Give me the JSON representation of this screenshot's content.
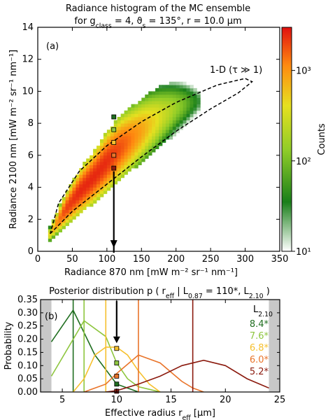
{
  "figure": {
    "title_line1": "Radiance histogram of the MC ensemble",
    "title_line2": "for g_class = 4, ϑ_s = 135°, r = 10.0 µm"
  },
  "chart_data": [
    {
      "type": "heatmap",
      "panel_label": "(a)",
      "xlabel": "Radiance 870 nm [mW m⁻² sr⁻¹ nm⁻¹]",
      "ylabel": "Radiance 2100 nm [mW m⁻² sr⁻¹ nm⁻¹]",
      "xlim": [
        0,
        350
      ],
      "ylim": [
        0,
        14
      ],
      "xticks": [
        0,
        50,
        100,
        150,
        200,
        250,
        300,
        350
      ],
      "yticks": [
        0,
        2,
        4,
        6,
        8,
        10,
        12,
        14
      ],
      "grid": false,
      "bin_size": {
        "x": 5,
        "y": 0.2
      },
      "density_ridge": {
        "x": [
          15,
          25,
          40,
          60,
          80,
          100,
          120,
          140,
          160,
          180,
          200,
          220,
          235
        ],
        "y": [
          0.9,
          1.6,
          2.6,
          3.7,
          4.6,
          5.6,
          6.5,
          7.2,
          7.9,
          8.5,
          9.0,
          9.3,
          9.4
        ],
        "width": [
          0.3,
          0.5,
          0.8,
          1.1,
          1.3,
          1.5,
          1.6,
          1.6,
          1.6,
          1.5,
          1.3,
          1.1,
          0.8
        ],
        "peak_counts": [
          300,
          900,
          2000,
          2500,
          2500,
          2400,
          1800,
          1100,
          600,
          300,
          150,
          60,
          25
        ]
      },
      "colorbar": {
        "label": "Counts",
        "scale": "log",
        "range": [
          10,
          3000
        ],
        "ticks": [
          {
            "value": 10,
            "label": "10¹"
          },
          {
            "value": 100,
            "label": "10²"
          },
          {
            "value": 1000,
            "label": "10³"
          }
        ],
        "colors": [
          "#ffffff",
          "#1a7f1a",
          "#8fcc28",
          "#e6e020",
          "#ff8a10",
          "#e01010"
        ]
      },
      "one_d_curve": {
        "label": "1-D (τ ≫ 1)",
        "x": [
          18,
          50,
          100,
          150,
          200,
          250,
          290,
          310,
          300,
          260,
          200,
          150,
          100,
          60,
          30,
          18
        ],
        "y": [
          1.1,
          2.5,
          4.2,
          5.9,
          7.5,
          8.9,
          9.9,
          10.6,
          10.8,
          10.4,
          9.3,
          8.1,
          6.6,
          5.0,
          3.0,
          1.1
        ]
      },
      "observation": {
        "x": 110,
        "arrow_from_y": 5.0,
        "arrow_to_y": 0.3,
        "markers": [
          {
            "y": 8.4,
            "color": "#1f6e1f"
          },
          {
            "y": 7.6,
            "color": "#8ec63f"
          },
          {
            "y": 6.8,
            "color": "#f6c02e"
          },
          {
            "y": 6.0,
            "color": "#e9742a"
          },
          {
            "y": 5.2,
            "color": "#8b1a0e"
          }
        ]
      }
    },
    {
      "type": "line",
      "panel_label": "(b)",
      "title": "Posterior distribution p ( r_eff | L_0.87 = 110*, L_2.10 )",
      "xlabel": "Effective radius r_eff [µm]",
      "ylabel": "Probability",
      "xlim": [
        3,
        25
      ],
      "ylim": [
        0,
        0.35
      ],
      "xticks": [
        5,
        10,
        15,
        20,
        25
      ],
      "yticks": [
        0.0,
        0.05,
        0.1,
        0.15,
        0.2,
        0.25,
        0.3,
        0.35
      ],
      "shaded_x_ranges": [
        [
          3,
          4
        ],
        [
          24,
          25
        ]
      ],
      "legend_title": "L_2.10",
      "legend_position": "right",
      "observation_x": 10,
      "series": [
        {
          "name": "8.4*",
          "color": "#1f6e1f",
          "x": [
            4,
            6,
            8,
            10,
            12
          ],
          "y": [
            0.19,
            0.31,
            0.14,
            0.03,
            0.0
          ],
          "vline": 6,
          "marker_y": 0.03
        },
        {
          "name": "7.6*",
          "color": "#8ec63f",
          "x": [
            4,
            5,
            7,
            9,
            10,
            11,
            12,
            13,
            14
          ],
          "y": [
            0.06,
            0.13,
            0.27,
            0.21,
            0.11,
            0.05,
            0.02,
            0.01,
            0.0
          ],
          "vline": 7,
          "marker_y": 0.11
        },
        {
          "name": "6.8*",
          "color": "#f6c02e",
          "x": [
            6,
            7,
            8,
            9,
            10,
            11,
            12,
            13,
            14
          ],
          "y": [
            0.0,
            0.05,
            0.14,
            0.17,
            0.17,
            0.14,
            0.08,
            0.03,
            0.0
          ],
          "vline": 9,
          "marker_y": 0.165
        },
        {
          "name": "6.0*",
          "color": "#e9742a",
          "x": [
            7,
            9,
            10,
            12,
            14,
            16,
            17,
            18
          ],
          "y": [
            0.0,
            0.03,
            0.07,
            0.14,
            0.11,
            0.04,
            0.015,
            0.0
          ],
          "vline": 12,
          "marker_y": 0.06
        },
        {
          "name": "5.2*",
          "color": "#8b1a0e",
          "x": [
            9,
            10,
            12,
            14,
            16,
            18,
            20,
            22,
            24
          ],
          "y": [
            0.0,
            0.005,
            0.03,
            0.06,
            0.1,
            0.12,
            0.1,
            0.05,
            0.015
          ],
          "vline": 17,
          "marker_y": 0.003
        }
      ]
    }
  ]
}
